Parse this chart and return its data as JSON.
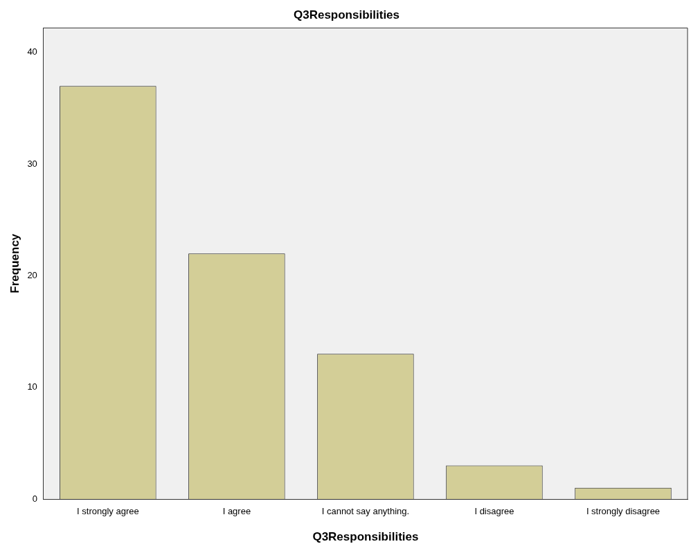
{
  "chart_data": {
    "type": "bar",
    "title": "Q3Responsibilities",
    "xlabel": "Q3Responsibilities",
    "ylabel": "Frequency",
    "categories": [
      "I strongly agree",
      "I agree",
      "I cannot say anything.",
      "I disagree",
      "I strongly disagree"
    ],
    "values": [
      37,
      22,
      13,
      3,
      1
    ],
    "color": "#d3ce97",
    "ylim": [
      0,
      42.2
    ],
    "yticks": [
      0,
      10,
      20,
      30,
      40
    ],
    "grid": false,
    "legend": false
  }
}
